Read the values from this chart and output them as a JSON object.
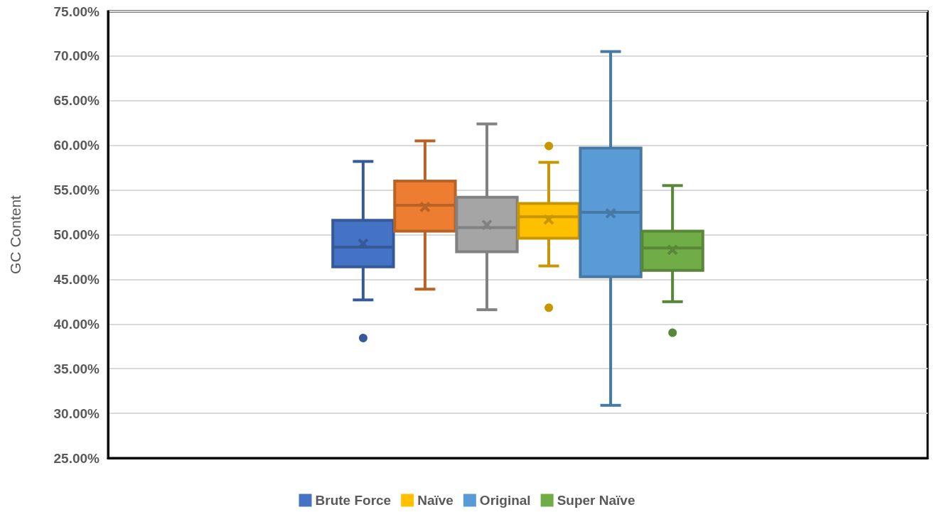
{
  "chart_data": {
    "type": "box",
    "ylabel": "GC Content",
    "categories": [
      null
    ],
    "ylim": [
      25,
      75
    ],
    "yticks": [
      {
        "value": 25,
        "label": "25.00%"
      },
      {
        "value": 30,
        "label": "30.00%"
      },
      {
        "value": 35,
        "label": "35.00%"
      },
      {
        "value": 40,
        "label": "40.00%"
      },
      {
        "value": 45,
        "label": "45.00%"
      },
      {
        "value": 50,
        "label": "50.00%"
      },
      {
        "value": 55,
        "label": "55.00%"
      },
      {
        "value": 60,
        "label": "60.00%"
      },
      {
        "value": 65,
        "label": "65.00%"
      },
      {
        "value": 70,
        "label": "70.00%"
      },
      {
        "value": 75,
        "label": "75.00%"
      }
    ],
    "grid": "y",
    "legend": "bottom",
    "tick_labels": "y",
    "series": [
      {
        "name": "Brute Force",
        "color": "#4472c4",
        "boxes": [
          {
            "low": 42.7,
            "q1": 46.4,
            "median": 48.6,
            "q3": 51.6,
            "high": 58.2,
            "mean": 49.0,
            "outliers": [
              38.5
            ]
          }
        ]
      },
      {
        "color": "#ed7d31",
        "boxes": [
          {
            "low": 43.9,
            "q1": 50.4,
            "median": 53.3,
            "q3": 56.0,
            "high": 60.5,
            "mean": 53.1
          }
        ]
      },
      {
        "color": "#a5a5a5",
        "boxes": [
          {
            "low": 41.6,
            "q1": 48.1,
            "median": 50.8,
            "q3": 54.2,
            "high": 62.4,
            "mean": 51.1
          }
        ]
      },
      {
        "name": "Naïve",
        "color": "#ffc000",
        "boxes": [
          {
            "low": 46.5,
            "q1": 49.6,
            "median": 52.0,
            "q3": 53.5,
            "high": 58.1,
            "mean": 51.7,
            "outliers": [
              60.0,
              41.9
            ]
          }
        ]
      },
      {
        "name": "Original",
        "color": "#5b9bd5",
        "boxes": [
          {
            "low": 30.9,
            "q1": 45.3,
            "median": 52.5,
            "q3": 59.7,
            "high": 70.5,
            "mean": 52.4
          }
        ]
      },
      {
        "name": "Super Naïve",
        "color": "#70ad47",
        "boxes": [
          {
            "low": 42.5,
            "q1": 46.0,
            "median": 48.5,
            "q3": 50.4,
            "high": 55.5,
            "mean": 48.3,
            "outliers": [
              39.1
            ]
          }
        ]
      }
    ]
  }
}
